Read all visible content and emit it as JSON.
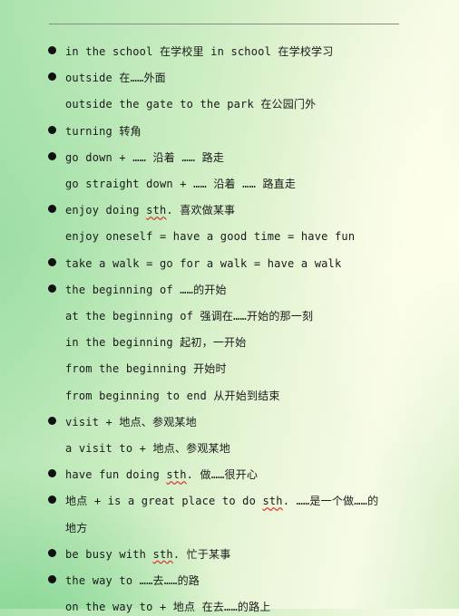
{
  "notes": [
    {
      "text": "in the school 在学校里   in school 在学校学习",
      "bullet": true
    },
    {
      "text": "outside 在……外面",
      "bullet": true
    },
    {
      "text": "outside the gate to the park 在公园门外",
      "bullet": false
    },
    {
      "text": "turning 转角",
      "bullet": true
    },
    {
      "text": "go down + …… 沿着 …… 路走",
      "bullet": true
    },
    {
      "text": "go straight down + …… 沿着 …… 路直走",
      "bullet": false
    },
    {
      "pre": "enjoy doing ",
      "mark": "sth",
      "post": ". 喜欢做某事",
      "bullet": true
    },
    {
      "text": "enjoy oneself = have a good time = have fun",
      "bullet": false
    },
    {
      "text": "take a walk = go for a walk = have a walk",
      "bullet": true
    },
    {
      "text": "the beginning of ……的开始",
      "bullet": true
    },
    {
      "text": "at the beginning of 强调在……开始的那一刻",
      "bullet": false
    },
    {
      "text": "in the beginning 起初，一开始",
      "bullet": false
    },
    {
      "text": "from the beginning 开始时",
      "bullet": false
    },
    {
      "text": "from beginning to end 从开始到结束",
      "bullet": false
    },
    {
      "text": "visit + 地点、参观某地",
      "bullet": true
    },
    {
      "text": "a visit to + 地点、参观某地",
      "bullet": false
    },
    {
      "pre": "have fun doing ",
      "mark": "sth",
      "post": ". 做……很开心",
      "bullet": true
    },
    {
      "pre": "地点 + is a great place to do ",
      "mark": "sth",
      "post": ". ……是一个做……的",
      "bullet": true
    },
    {
      "text": "地方",
      "bullet": false
    },
    {
      "pre": "be busy with ",
      "mark": "sth",
      "post": ". 忙于某事",
      "bullet": true
    },
    {
      "text": "the way to ……去……的路",
      "bullet": true
    },
    {
      "text": "on the way to + 地点 在去……的路上",
      "bullet": false
    }
  ]
}
